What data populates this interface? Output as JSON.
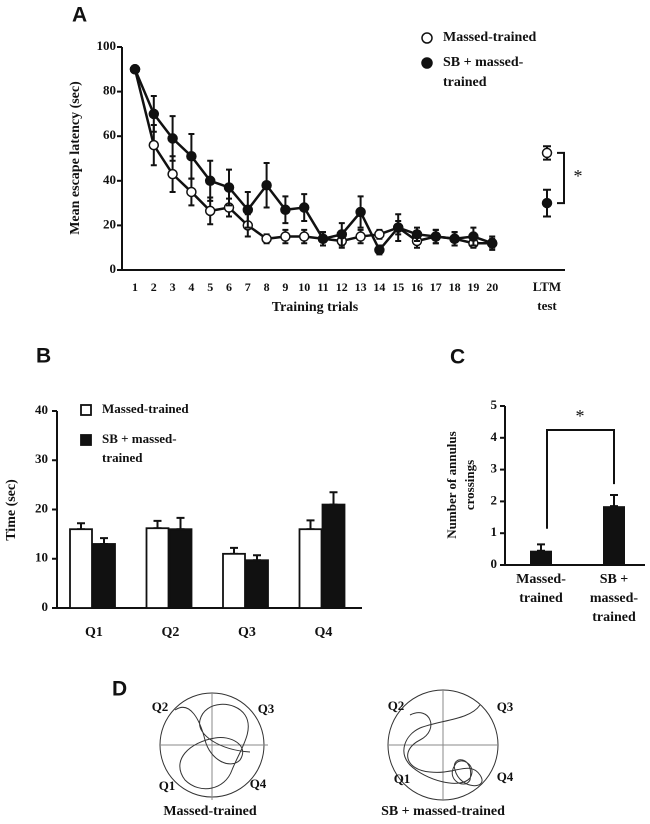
{
  "chart_data": [
    {
      "type": "line",
      "panel": "A",
      "y_label": "Mean escape latency (sec)",
      "x_label": "Training trials",
      "categories": [
        "1",
        "2",
        "3",
        "4",
        "5",
        "6",
        "7",
        "8",
        "9",
        "10",
        "11",
        "12",
        "13",
        "14",
        "15",
        "16",
        "17",
        "18",
        "19",
        "20"
      ],
      "ltm_label": "LTM test",
      "significance": "*",
      "ylim": [
        0,
        100
      ],
      "yticks": [
        0,
        20,
        40,
        60,
        80,
        100
      ],
      "series": [
        {
          "name": "Massed-trained",
          "color": "#111111",
          "marker_fill": "#ffffff",
          "values": [
            90,
            56,
            43,
            35,
            26.5,
            28,
            20,
            14,
            15,
            15,
            14,
            13,
            15,
            16,
            19,
            13,
            15,
            14,
            12,
            12
          ],
          "errors": [
            0,
            9,
            8,
            6,
            6,
            4,
            5,
            2,
            3,
            3,
            3,
            3,
            3,
            2,
            3,
            3,
            3,
            3,
            2,
            2
          ],
          "ltm": 52.5,
          "ltm_error": 3
        },
        {
          "name": "SB + massed-trained",
          "color": "#111111",
          "marker_fill": "#111111",
          "values": [
            90,
            70,
            59,
            51,
            40,
            37,
            27,
            38,
            27,
            28,
            14,
            16,
            26,
            9,
            19,
            16,
            15,
            14,
            15,
            12
          ],
          "errors": [
            0,
            8,
            10,
            10,
            9,
            8,
            8,
            10,
            6,
            6,
            3,
            5,
            7,
            2,
            6,
            3,
            3,
            3,
            4,
            3
          ],
          "ltm": 30,
          "ltm_error": 6
        }
      ]
    },
    {
      "type": "bar",
      "panel": "B",
      "y_label": "Time (sec)",
      "categories": [
        "Q1",
        "Q2",
        "Q3",
        "Q4"
      ],
      "ylim": [
        0,
        40
      ],
      "yticks": [
        0,
        10,
        20,
        30,
        40
      ],
      "series": [
        {
          "name": "Massed-trained",
          "color": "#ffffff",
          "values": [
            16,
            16.2,
            11,
            16
          ],
          "errors": [
            1.2,
            1.5,
            1.2,
            1.8
          ]
        },
        {
          "name": "SB + massed-trained",
          "color": "#111111",
          "values": [
            13,
            16,
            9.7,
            21
          ],
          "errors": [
            1.2,
            2.3,
            1.0,
            2.5
          ]
        }
      ]
    },
    {
      "type": "bar",
      "panel": "C",
      "y_label": "Number of annulus crossings",
      "significance": "*",
      "categories": [
        "Massed-trained",
        "SB + massed-trained"
      ],
      "ylim": [
        0,
        5
      ],
      "yticks": [
        0,
        1,
        2,
        3,
        4,
        5
      ],
      "color": "#111111",
      "values": [
        0.45,
        1.85
      ],
      "errors": [
        0.2,
        0.35
      ]
    }
  ],
  "panel_d": {
    "panel": "D",
    "mazes": [
      {
        "caption": "Massed-trained",
        "quadrants": [
          "Q1",
          "Q2",
          "Q3",
          "Q4"
        ]
      },
      {
        "caption": "SB + massed-trained",
        "quadrants": [
          "Q1",
          "Q2",
          "Q3",
          "Q4"
        ]
      }
    ]
  }
}
